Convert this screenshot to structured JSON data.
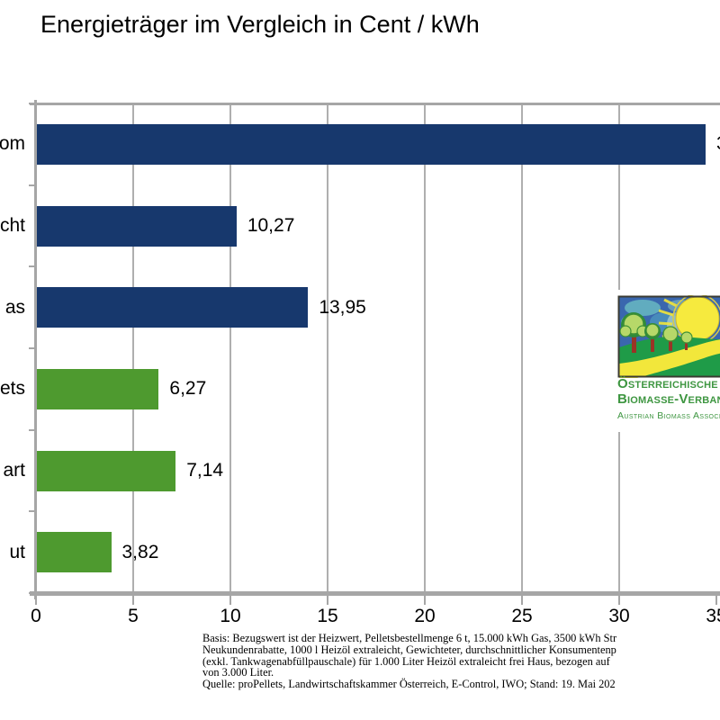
{
  "title": "Energieträger im Vergleich in Cent / kWh",
  "chart_data": {
    "type": "bar",
    "orientation": "horizontal",
    "title": "Energieträger im Vergleich in Cent / kWh",
    "unit": "Cent / kWh",
    "xlim": [
      0,
      35.2
    ],
    "x_ticks": [
      0,
      5,
      10,
      15,
      20,
      25,
      30,
      35
    ],
    "grid": "vertical",
    "legend": "none",
    "bars": [
      {
        "category_visible": "om",
        "value": 34.4,
        "value_label_visible": "3",
        "color": "#17386D"
      },
      {
        "category_visible": "cht",
        "value": 10.27,
        "value_label_visible": "10,27",
        "color": "#17386D"
      },
      {
        "category_visible": "as",
        "value": 13.95,
        "value_label_visible": "13,95",
        "color": "#17386D"
      },
      {
        "category_visible": "ets",
        "value": 6.27,
        "value_label_visible": "6,27",
        "color": "#4E9A2F"
      },
      {
        "category_visible": "art",
        "value": 7.14,
        "value_label_visible": "7,14",
        "color": "#4E9A2F"
      },
      {
        "category_visible": "ut",
        "value": 3.82,
        "value_label_visible": "3,82",
        "color": "#4E9A2F"
      }
    ],
    "colors": {
      "bar_blue": "#17386D",
      "bar_green": "#4E9A2F",
      "gridline": "#AFAFAF",
      "axis": "#A6A6A6"
    }
  },
  "logo": {
    "org_line1": "Österreichische",
    "org_line2": "Biomasse-Verban",
    "org_line3": "Austrian Biomass Associatio",
    "text_color": "#3E9641"
  },
  "footer": {
    "lines": [
      "Basis: Bezugswert ist der Heizwert, Pelletsbestellmenge 6 t, 15.000 kWh Gas, 3500 kWh Str",
      "Neukundenrabatte, 1000 l Heizöl extraleicht, Gewichteter, durchschnittlicher Konsumentenp",
      "(exkl. Tankwagenabfüllpauschale) für 1.000 Liter Heizöl extraleicht frei Haus, bezogen auf",
      "von 3.000 Liter.",
      "Quelle: proPellets, Landwirtschaftskammer Österreich, E-Control, IWO; Stand: 19. Mai 202"
    ]
  }
}
